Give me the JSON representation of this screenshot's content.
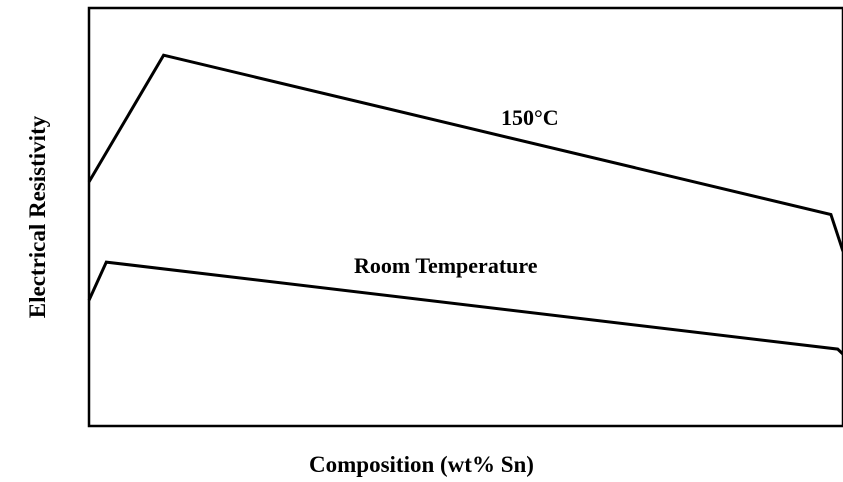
{
  "chart_data": {
    "type": "line",
    "xlabel": "Composition (wt% Sn)",
    "ylabel": "Electrical Resistivity",
    "xlim": [
      0,
      100
    ],
    "ylim": [
      0,
      100
    ],
    "grid": false,
    "series": [
      {
        "name": "150°C",
        "x": [
          0,
          9.9,
          98.4,
          100
        ],
        "y": [
          58.4,
          88.7,
          50.6,
          41.8
        ]
      },
      {
        "name": "Room Temperature",
        "x": [
          0,
          2.3,
          99.3,
          100
        ],
        "y": [
          30.1,
          39.2,
          18.4,
          17.2
        ]
      }
    ]
  }
}
